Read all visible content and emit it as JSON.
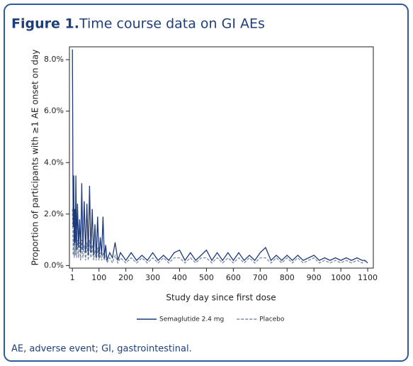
{
  "chart_data": {
    "type": "line",
    "figure_label": "Figure 1.",
    "title": "Time course data on GI AEs",
    "x_label": "Study day since first dose",
    "y_label": "Proportion of participants with ≥1 AE onset on day",
    "footnote": "AE, adverse event; GI, gastrointestinal.",
    "x": [
      1,
      2,
      3,
      4,
      6,
      8,
      10,
      12,
      14,
      17,
      20,
      24,
      28,
      32,
      36,
      40,
      45,
      50,
      55,
      60,
      65,
      70,
      75,
      80,
      85,
      90,
      95,
      100,
      105,
      110,
      115,
      120,
      125,
      130,
      140,
      150,
      160,
      170,
      180,
      200,
      220,
      240,
      260,
      280,
      300,
      320,
      340,
      360,
      380,
      400,
      420,
      440,
      460,
      480,
      500,
      520,
      540,
      560,
      580,
      600,
      620,
      640,
      660,
      680,
      700,
      720,
      740,
      760,
      780,
      800,
      820,
      840,
      860,
      880,
      900,
      920,
      940,
      960,
      980,
      1000,
      1020,
      1040,
      1060,
      1080,
      1090,
      1100
    ],
    "series": [
      {
        "name": "Semaglutide 2.4 mg",
        "color": "#1f3a7a",
        "dash": false,
        "values": [
          8.4,
          6.0,
          3.6,
          1.5,
          3.5,
          0.8,
          2.2,
          0.9,
          3.5,
          0.6,
          2.4,
          0.7,
          1.8,
          0.5,
          3.2,
          0.6,
          2.5,
          0.5,
          2.4,
          0.4,
          3.1,
          0.5,
          2.2,
          0.4,
          1.6,
          0.3,
          1.9,
          0.3,
          1.1,
          0.4,
          1.9,
          0.3,
          0.8,
          0.2,
          0.5,
          0.3,
          0.9,
          0.2,
          0.5,
          0.2,
          0.5,
          0.2,
          0.4,
          0.2,
          0.5,
          0.2,
          0.4,
          0.2,
          0.5,
          0.6,
          0.2,
          0.5,
          0.2,
          0.4,
          0.6,
          0.2,
          0.5,
          0.2,
          0.5,
          0.2,
          0.5,
          0.2,
          0.4,
          0.2,
          0.5,
          0.7,
          0.2,
          0.4,
          0.2,
          0.4,
          0.2,
          0.4,
          0.2,
          0.3,
          0.4,
          0.2,
          0.3,
          0.2,
          0.3,
          0.2,
          0.3,
          0.2,
          0.3,
          0.2,
          0.2,
          0.1
        ]
      },
      {
        "name": "Placebo",
        "color": "#7d8ca3",
        "dash": true,
        "values": [
          2.2,
          1.6,
          1.2,
          0.4,
          1.4,
          0.3,
          1.1,
          0.4,
          1.3,
          0.3,
          1.0,
          0.3,
          0.9,
          0.2,
          1.0,
          0.3,
          0.8,
          0.2,
          0.9,
          0.2,
          1.0,
          0.3,
          0.8,
          0.2,
          0.6,
          0.2,
          0.7,
          0.2,
          0.5,
          0.2,
          0.5,
          0.2,
          0.4,
          0.1,
          0.3,
          0.1,
          0.4,
          0.1,
          0.3,
          0.1,
          0.3,
          0.1,
          0.3,
          0.1,
          0.3,
          0.1,
          0.3,
          0.1,
          0.3,
          0.3,
          0.1,
          0.3,
          0.1,
          0.3,
          0.3,
          0.1,
          0.3,
          0.1,
          0.3,
          0.1,
          0.3,
          0.1,
          0.3,
          0.1,
          0.3,
          0.3,
          0.1,
          0.3,
          0.1,
          0.3,
          0.1,
          0.3,
          0.1,
          0.2,
          0.3,
          0.1,
          0.2,
          0.1,
          0.2,
          0.1,
          0.2,
          0.1,
          0.2,
          0.1,
          0.2,
          0.1
        ]
      }
    ],
    "xlim": [
      -10,
      1121
    ],
    "ylim": [
      -0.1,
      8.5
    ],
    "xticks": [
      1,
      100,
      200,
      300,
      400,
      500,
      600,
      700,
      800,
      900,
      1000,
      1100
    ],
    "yticks": [
      {
        "value": 0,
        "label": "0.0%"
      },
      {
        "value": 2,
        "label": "2.0%"
      },
      {
        "value": 4,
        "label": "4.0%"
      },
      {
        "value": 6,
        "label": "6.0%"
      },
      {
        "value": 8,
        "label": "8.0%"
      }
    ],
    "grid": false,
    "legend": "bottom"
  }
}
